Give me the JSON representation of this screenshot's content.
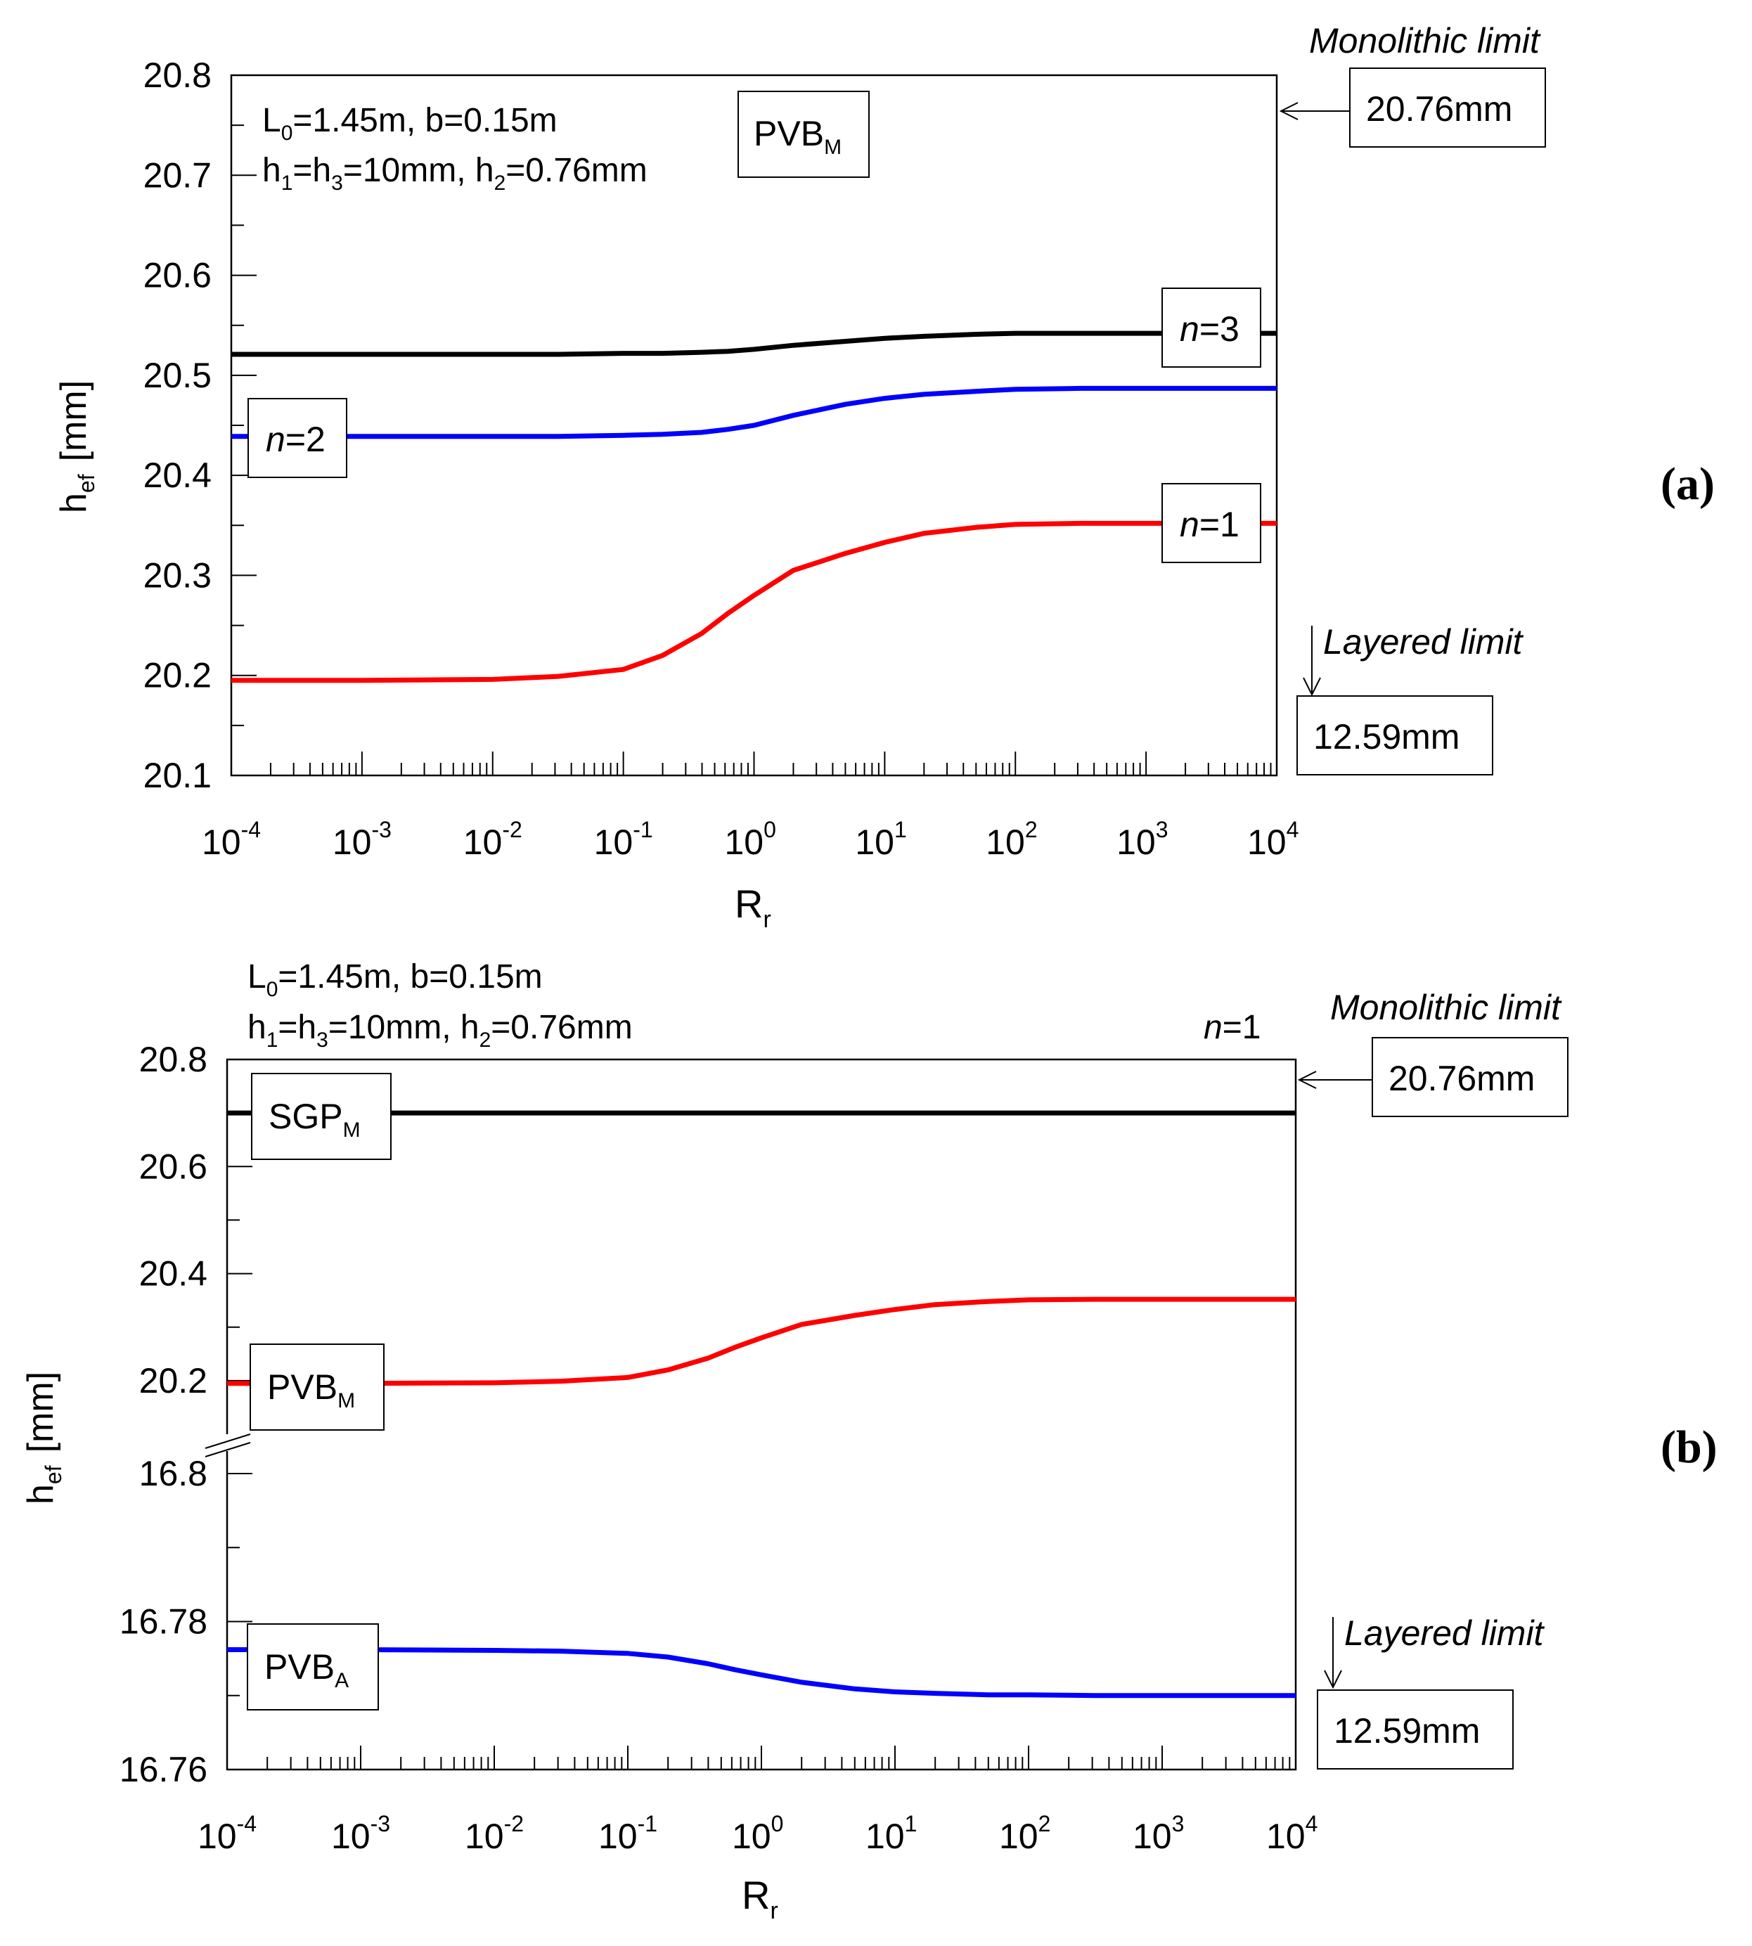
{
  "chart_data": [
    {
      "type": "line",
      "panel_tag": "(a)",
      "xlabel": "R",
      "xlabel_sub": "r",
      "ylabel": "h",
      "ylabel_sub": "ef",
      "ylabel_unit": "[mm]",
      "xscale": "log",
      "xlim": [
        0.0001,
        10000
      ],
      "ylim": [
        20.1,
        20.8
      ],
      "yticks": [
        "20.1",
        "20.2",
        "20.3",
        "20.4",
        "20.5",
        "20.6",
        "20.7",
        "20.8"
      ],
      "xtick_base": "10",
      "xtick_exps": [
        "-4",
        "-3",
        "-2",
        "-1",
        "0",
        "1",
        "2",
        "3",
        "4"
      ],
      "params_line1": {
        "a": "L",
        "a_sub": "0",
        "b": "=1.45m, b=0.15m"
      },
      "params_line2": {
        "a": "h",
        "a_sub": "1",
        "b": "=h",
        "b_sub": "3",
        "c": "=10mm, h",
        "c_sub": "2",
        "d": "=0.76mm"
      },
      "material": {
        "main": "PVB",
        "sub": "M"
      },
      "monolithic": {
        "label": "Monolithic limit",
        "value": "20.76mm"
      },
      "layered": {
        "label": "Layered limit",
        "value": "12.59mm"
      },
      "x_log": [
        -4,
        -3,
        -2,
        -1.5,
        -1,
        -0.7,
        -0.4,
        -0.2,
        0,
        0.3,
        0.7,
        1,
        1.3,
        1.7,
        2,
        2.5,
        3,
        4
      ],
      "series": [
        {
          "name": "n=3",
          "italic": "n",
          "rest": "=3",
          "color": "#000000",
          "values": [
            20.521,
            20.521,
            20.521,
            20.521,
            20.522,
            20.522,
            20.523,
            20.524,
            20.526,
            20.53,
            20.534,
            20.537,
            20.539,
            20.541,
            20.542,
            20.542,
            20.542,
            20.542
          ]
        },
        {
          "name": "n=2",
          "italic": "n",
          "rest": "=2",
          "color": "#0000ff",
          "values": [
            20.439,
            20.439,
            20.439,
            20.439,
            20.44,
            20.441,
            20.443,
            20.446,
            20.45,
            20.46,
            20.471,
            20.477,
            20.481,
            20.484,
            20.486,
            20.487,
            20.487,
            20.487
          ]
        },
        {
          "name": "n=1",
          "italic": "n",
          "rest": "=1",
          "color": "#ff0000",
          "values": [
            20.195,
            20.195,
            20.196,
            20.199,
            20.206,
            20.22,
            20.242,
            20.262,
            20.28,
            20.305,
            20.322,
            20.333,
            20.342,
            20.348,
            20.351,
            20.352,
            20.352,
            20.352
          ]
        }
      ]
    },
    {
      "type": "line",
      "panel_tag": "(b)",
      "xlabel": "R",
      "xlabel_sub": "r",
      "ylabel": "h",
      "ylabel_sub": "ef",
      "ylabel_unit": "[mm]",
      "xscale": "log",
      "xlim": [
        0.0001,
        10000
      ],
      "ylim_upper": [
        20.1,
        20.8
      ],
      "ylim_lower": [
        16.76,
        16.8
      ],
      "broken_axis": true,
      "yticks": [
        "20.8",
        "20.6",
        "20.4",
        "20.2",
        "16.8",
        "16.78",
        "16.76"
      ],
      "xtick_base": "10",
      "xtick_exps": [
        "-4",
        "-3",
        "-2",
        "-1",
        "0",
        "1",
        "2",
        "3",
        "4"
      ],
      "params_line1": {
        "a": "L",
        "a_sub": "0",
        "b": "=1.45m, b=0.15m"
      },
      "params_line2": {
        "a": "h",
        "a_sub": "1",
        "b": "=h",
        "b_sub": "3",
        "c": "=10mm, h",
        "c_sub": "2",
        "d": "=0.76mm"
      },
      "n_label": {
        "italic": "n",
        "rest": "=1"
      },
      "monolithic": {
        "label": "Monolithic limit",
        "value": "20.76mm"
      },
      "layered": {
        "label": "Layered limit",
        "value": "12.59mm"
      },
      "x_log": [
        -4,
        -3,
        -2,
        -1.5,
        -1,
        -0.7,
        -0.4,
        -0.2,
        0,
        0.3,
        0.7,
        1,
        1.3,
        1.7,
        2,
        2.5,
        3,
        4
      ],
      "series": [
        {
          "name": "SGP_M",
          "main": "SGP",
          "sub": "M",
          "color": "#000000",
          "segment": "upper",
          "values": [
            20.7,
            20.7,
            20.7,
            20.7,
            20.7,
            20.7,
            20.7,
            20.7,
            20.7,
            20.7,
            20.7,
            20.7,
            20.7,
            20.7,
            20.7,
            20.7,
            20.7,
            20.7
          ]
        },
        {
          "name": "PVB_M",
          "main": "PVB",
          "sub": "M",
          "color": "#ff0000",
          "segment": "upper",
          "values": [
            20.195,
            20.195,
            20.196,
            20.199,
            20.206,
            20.22,
            20.242,
            20.262,
            20.28,
            20.305,
            20.322,
            20.333,
            20.342,
            20.348,
            20.351,
            20.352,
            20.352,
            20.352
          ]
        },
        {
          "name": "PVB_A",
          "main": "PVB",
          "sub": "A",
          "color": "#0000ff",
          "segment": "lower",
          "values": [
            16.7762,
            16.7762,
            16.7761,
            16.776,
            16.7757,
            16.7752,
            16.7743,
            16.7735,
            16.7728,
            16.7718,
            16.7709,
            16.7705,
            16.7703,
            16.7701,
            16.7701,
            16.77,
            16.77,
            16.77
          ]
        }
      ]
    }
  ]
}
